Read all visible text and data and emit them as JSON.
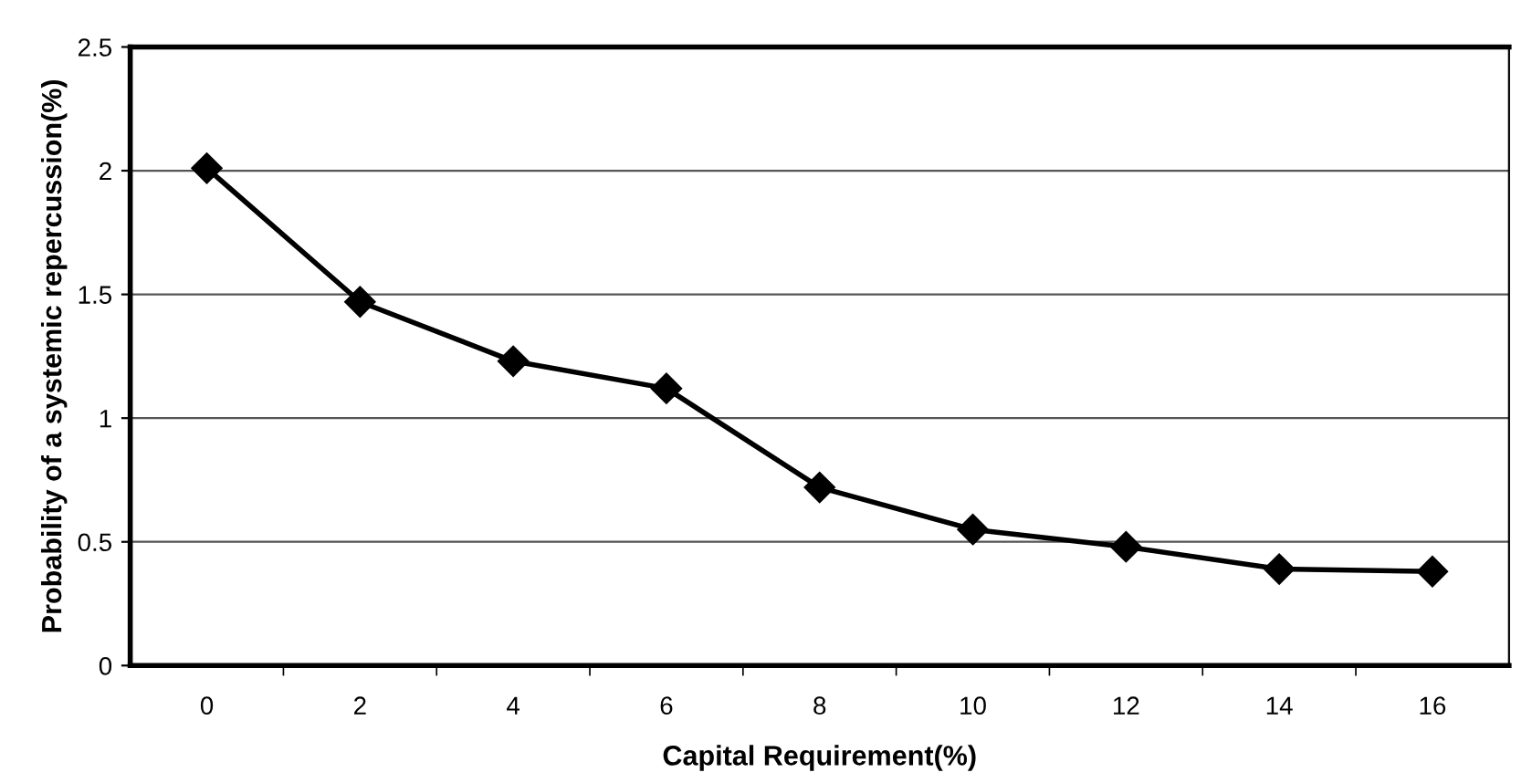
{
  "chart_data": {
    "type": "line",
    "xlabel": "Capital Requirement(%)",
    "ylabel": "Probability of a systemic repercussion(%)",
    "categories": [
      "0",
      "2",
      "4",
      "6",
      "8",
      "10",
      "12",
      "14",
      "16"
    ],
    "series": [
      {
        "color": "#000000",
        "values": [
          2.01,
          1.47,
          1.23,
          1.12,
          0.72,
          0.55,
          0.48,
          0.39,
          0.38
        ]
      }
    ],
    "ylim": [
      0,
      2.5
    ],
    "yticks": [
      0,
      0.5,
      1,
      1.5,
      2,
      2.5
    ],
    "grid": "y",
    "marker": "diamond",
    "line_style": "solid"
  }
}
